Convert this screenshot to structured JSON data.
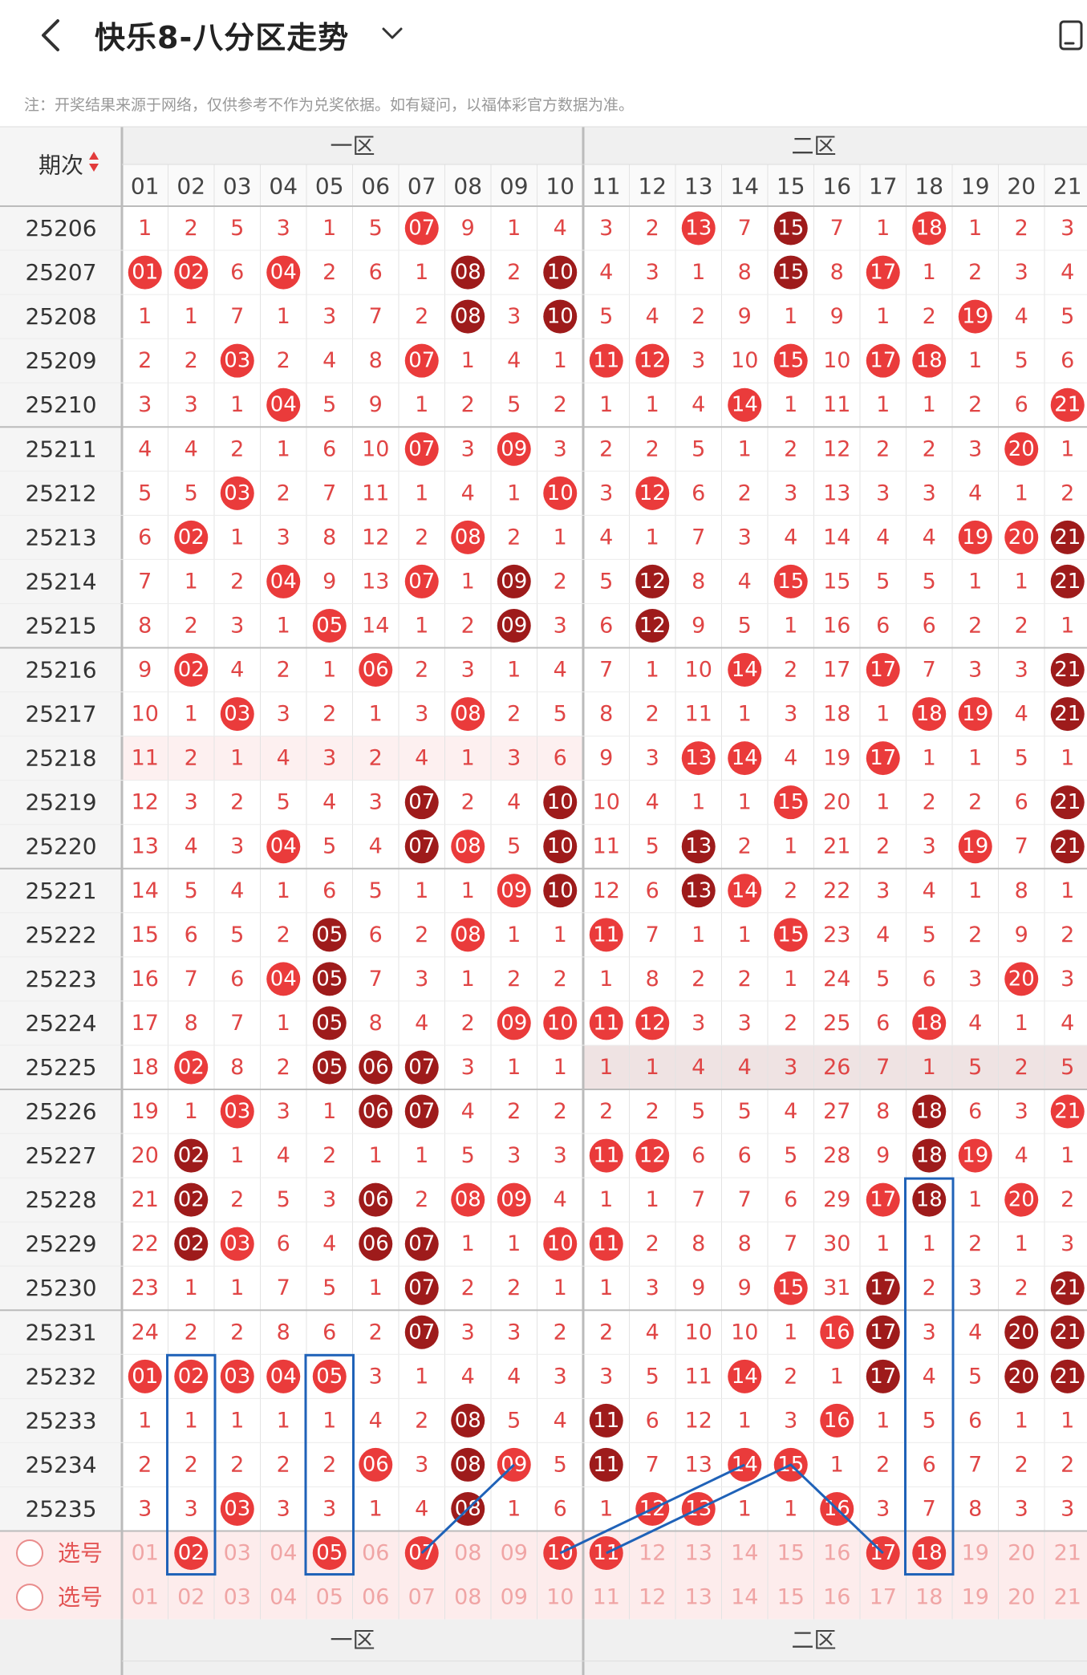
{
  "header": {
    "title": "快乐8-八分区走势",
    "back_icon": "chevron-left-icon",
    "dropdown_icon": "chevron-down-icon",
    "right_icon": "phone-rotate-icon"
  },
  "note": "注：开奖结果来源于网络，仅供参考不作为兑奖依据。如有疑问，以福体彩官方数据为准。",
  "table": {
    "issue_header": "期次",
    "zone_labels": [
      "一区",
      "二区"
    ],
    "columns": [
      "01",
      "02",
      "03",
      "04",
      "05",
      "06",
      "07",
      "08",
      "09",
      "10",
      "11",
      "12",
      "13",
      "14",
      "15",
      "16",
      "17",
      "18",
      "19",
      "20",
      "21"
    ],
    "rows": [
      {
        "issue": "25206",
        "cells": [
          1,
          2,
          5,
          3,
          1,
          5,
          "07",
          9,
          1,
          4,
          3,
          2,
          "13",
          7,
          "15",
          7,
          1,
          "18",
          1,
          2,
          3
        ]
      },
      {
        "issue": "25207",
        "cells": [
          "01",
          "02",
          6,
          "04",
          2,
          6,
          1,
          "08",
          2,
          "10",
          4,
          3,
          1,
          8,
          "15",
          8,
          "17",
          1,
          2,
          3,
          4
        ]
      },
      {
        "issue": "25208",
        "cells": [
          1,
          1,
          7,
          1,
          3,
          7,
          2,
          "08",
          3,
          "10",
          5,
          4,
          2,
          9,
          1,
          9,
          1,
          2,
          "19",
          4,
          5
        ]
      },
      {
        "issue": "25209",
        "cells": [
          2,
          2,
          "03",
          2,
          4,
          8,
          "07",
          1,
          4,
          1,
          "11",
          "12",
          3,
          10,
          "15",
          10,
          "17",
          "18",
          1,
          5,
          6
        ]
      },
      {
        "issue": "25210",
        "cells": [
          3,
          3,
          1,
          "04",
          5,
          9,
          1,
          2,
          5,
          2,
          1,
          1,
          4,
          "14",
          1,
          11,
          1,
          1,
          2,
          6,
          "21"
        ]
      },
      {
        "issue": "25211",
        "cells": [
          4,
          4,
          2,
          1,
          6,
          10,
          "07",
          3,
          "09",
          3,
          2,
          2,
          5,
          1,
          2,
          12,
          2,
          2,
          3,
          "20",
          1
        ]
      },
      {
        "issue": "25212",
        "cells": [
          5,
          5,
          "03",
          2,
          7,
          11,
          1,
          4,
          1,
          "10",
          3,
          "12",
          6,
          2,
          3,
          13,
          3,
          3,
          4,
          1,
          2
        ]
      },
      {
        "issue": "25213",
        "cells": [
          6,
          "02",
          1,
          3,
          8,
          12,
          2,
          "08",
          2,
          1,
          4,
          1,
          7,
          3,
          4,
          14,
          4,
          4,
          "19",
          "20",
          "21"
        ]
      },
      {
        "issue": "25214",
        "cells": [
          7,
          1,
          2,
          "04",
          9,
          13,
          "07",
          1,
          "09",
          2,
          5,
          "12",
          8,
          4,
          "15",
          15,
          5,
          5,
          1,
          1,
          "21"
        ]
      },
      {
        "issue": "25215",
        "cells": [
          8,
          2,
          3,
          1,
          "05",
          14,
          1,
          2,
          "09",
          3,
          6,
          "12",
          9,
          5,
          1,
          16,
          6,
          6,
          2,
          2,
          1
        ]
      },
      {
        "issue": "25216",
        "cells": [
          9,
          "02",
          4,
          2,
          1,
          "06",
          2,
          3,
          1,
          4,
          7,
          1,
          10,
          "14",
          2,
          17,
          "17",
          7,
          3,
          3,
          "21"
        ]
      },
      {
        "issue": "25217",
        "cells": [
          10,
          1,
          "03",
          3,
          2,
          1,
          3,
          "08",
          2,
          5,
          8,
          2,
          11,
          1,
          3,
          18,
          1,
          "18",
          "19",
          4,
          "21"
        ]
      },
      {
        "issue": "25218",
        "cells": [
          11,
          2,
          1,
          4,
          3,
          2,
          4,
          1,
          3,
          6,
          9,
          3,
          "13",
          "14",
          4,
          19,
          "17",
          1,
          1,
          5,
          1
        ]
      },
      {
        "issue": "25219",
        "cells": [
          12,
          3,
          2,
          5,
          4,
          3,
          "07",
          2,
          4,
          "10",
          10,
          4,
          1,
          1,
          "15",
          20,
          1,
          2,
          2,
          6,
          "21"
        ]
      },
      {
        "issue": "25220",
        "cells": [
          13,
          4,
          3,
          "04",
          5,
          4,
          "07",
          "08",
          5,
          "10",
          11,
          5,
          "13",
          2,
          1,
          21,
          2,
          3,
          "19",
          7,
          "21"
        ]
      },
      {
        "issue": "25221",
        "cells": [
          14,
          5,
          4,
          1,
          6,
          5,
          1,
          1,
          "09",
          "10",
          12,
          6,
          "13",
          "14",
          2,
          22,
          3,
          4,
          1,
          8,
          1
        ]
      },
      {
        "issue": "25222",
        "cells": [
          15,
          6,
          5,
          2,
          "05",
          6,
          2,
          "08",
          1,
          1,
          "11",
          7,
          1,
          1,
          "15",
          23,
          4,
          5,
          2,
          9,
          2
        ]
      },
      {
        "issue": "25223",
        "cells": [
          16,
          7,
          6,
          "04",
          "05",
          7,
          3,
          1,
          2,
          2,
          1,
          8,
          2,
          2,
          1,
          24,
          5,
          6,
          3,
          "20",
          3
        ]
      },
      {
        "issue": "25224",
        "cells": [
          17,
          8,
          7,
          1,
          "05",
          8,
          4,
          2,
          "09",
          "10",
          "11",
          "12",
          3,
          3,
          2,
          25,
          6,
          "18",
          4,
          1,
          4
        ]
      },
      {
        "issue": "25225",
        "cells": [
          18,
          "02",
          8,
          2,
          "05",
          "06",
          "07",
          3,
          1,
          1,
          1,
          1,
          4,
          4,
          3,
          26,
          7,
          1,
          5,
          2,
          5
        ]
      },
      {
        "issue": "25226",
        "cells": [
          19,
          1,
          "03",
          3,
          1,
          "06",
          "07",
          4,
          2,
          2,
          2,
          2,
          5,
          5,
          4,
          27,
          8,
          "18",
          6,
          3,
          "21"
        ]
      },
      {
        "issue": "25227",
        "cells": [
          20,
          "02",
          1,
          4,
          2,
          1,
          1,
          5,
          3,
          3,
          "11",
          "12",
          6,
          6,
          5,
          28,
          9,
          "18",
          "19",
          4,
          1
        ]
      },
      {
        "issue": "25228",
        "cells": [
          21,
          "02",
          2,
          5,
          3,
          "06",
          2,
          "08",
          "09",
          4,
          1,
          1,
          7,
          7,
          6,
          29,
          "17",
          "18",
          1,
          "20",
          2
        ]
      },
      {
        "issue": "25229",
        "cells": [
          22,
          "02",
          "03",
          6,
          4,
          "06",
          "07",
          1,
          1,
          "10",
          "11",
          2,
          8,
          8,
          7,
          30,
          1,
          1,
          2,
          1,
          3
        ]
      },
      {
        "issue": "25230",
        "cells": [
          23,
          1,
          1,
          7,
          5,
          1,
          "07",
          2,
          2,
          1,
          1,
          3,
          9,
          9,
          "15",
          31,
          "17",
          2,
          3,
          2,
          "21"
        ]
      },
      {
        "issue": "25231",
        "cells": [
          24,
          2,
          2,
          8,
          6,
          2,
          "07",
          3,
          3,
          2,
          2,
          4,
          10,
          10,
          1,
          "16",
          "17",
          3,
          4,
          "20",
          "21"
        ]
      },
      {
        "issue": "25232",
        "cells": [
          "01",
          "02",
          "03",
          "04",
          "05",
          3,
          1,
          4,
          4,
          3,
          3,
          5,
          11,
          "14",
          2,
          1,
          "17",
          4,
          5,
          "20",
          "21"
        ]
      },
      {
        "issue": "25233",
        "cells": [
          1,
          1,
          1,
          1,
          1,
          4,
          2,
          "08",
          5,
          4,
          "11",
          6,
          12,
          1,
          3,
          "16",
          1,
          5,
          6,
          1,
          1
        ]
      },
      {
        "issue": "25234",
        "cells": [
          2,
          2,
          2,
          2,
          2,
          "06",
          3,
          "08",
          "09",
          5,
          "11",
          7,
          13,
          "14",
          "15",
          1,
          2,
          6,
          7,
          2,
          2
        ]
      },
      {
        "issue": "25235",
        "cells": [
          3,
          3,
          "03",
          3,
          3,
          1,
          4,
          "08",
          1,
          6,
          1,
          "12",
          "13",
          1,
          1,
          "16",
          3,
          7,
          8,
          3,
          3
        ]
      }
    ],
    "select_rows": [
      {
        "label": "选号",
        "selected": [
          "02",
          "05",
          "07",
          "10",
          "11",
          "17",
          "18"
        ]
      },
      {
        "label": "选号",
        "selected": []
      }
    ]
  }
}
